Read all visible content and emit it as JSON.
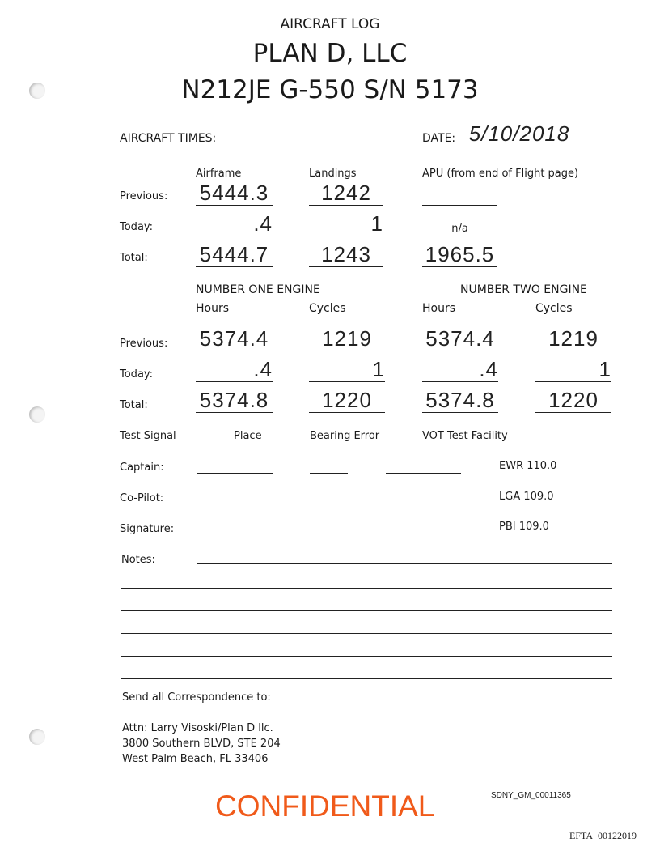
{
  "header": {
    "doc_title": "AIRCRAFT LOG",
    "company": "PLAN D, LLC",
    "aircraft": "N212JE G-550 S/N 5173"
  },
  "aircraft_times": {
    "label": "AIRCRAFT TIMES:",
    "date_label": "DATE:",
    "date_value": "5/10/2018",
    "columns": [
      "Airframe",
      "Landings",
      "APU (from end of Flight page)"
    ],
    "rows": [
      {
        "label": "Previous:",
        "airframe": "5444.3",
        "landings": "1242",
        "apu": ""
      },
      {
        "label": "Today:",
        "airframe": ".4",
        "landings": "1",
        "apu": "n/a"
      },
      {
        "label": "Total:",
        "airframe": "5444.7",
        "landings": "1243",
        "apu": "1965.5"
      }
    ]
  },
  "engines": {
    "engine_one": "NUMBER ONE ENGINE",
    "engine_two": "NUMBER TWO ENGINE",
    "hours_label": "Hours",
    "cycles_label": "Cycles",
    "rows": [
      {
        "label": "Previous:",
        "e1_hours": "5374.4",
        "e1_cycles": "1219",
        "e2_hours": "5374.4",
        "e2_cycles": "1219"
      },
      {
        "label": "Today:",
        "e1_hours": ".4",
        "e1_cycles": "1",
        "e2_hours": ".4",
        "e2_cycles": "1"
      },
      {
        "label": "Total:",
        "e1_hours": "5374.8",
        "e1_cycles": "1220",
        "e2_hours": "5374.8",
        "e2_cycles": "1220"
      }
    ]
  },
  "test_signal": {
    "headers": [
      "Test Signal",
      "Place",
      "Bearing Error",
      "VOT Test Facility"
    ],
    "captain": "Captain:",
    "copilot": "Co-Pilot:",
    "signature": "Signature:",
    "facilities": [
      "EWR 110.0",
      "LGA 109.0",
      "PBI 109.0"
    ]
  },
  "notes_label": "Notes:",
  "correspondence": {
    "heading": "Send all Correspondence to:",
    "lines": [
      "Attn: Larry Visoski/Plan D llc.",
      "3800 Southern BLVD, STE 204",
      "West Palm Beach, FL 33406"
    ]
  },
  "stamps": {
    "confidential": "CONFIDENTIAL",
    "confidential_color": "#f05a1a",
    "bates_sdny": "SDNY_GM_00011365",
    "bates_efta": "EFTA_00122019"
  }
}
